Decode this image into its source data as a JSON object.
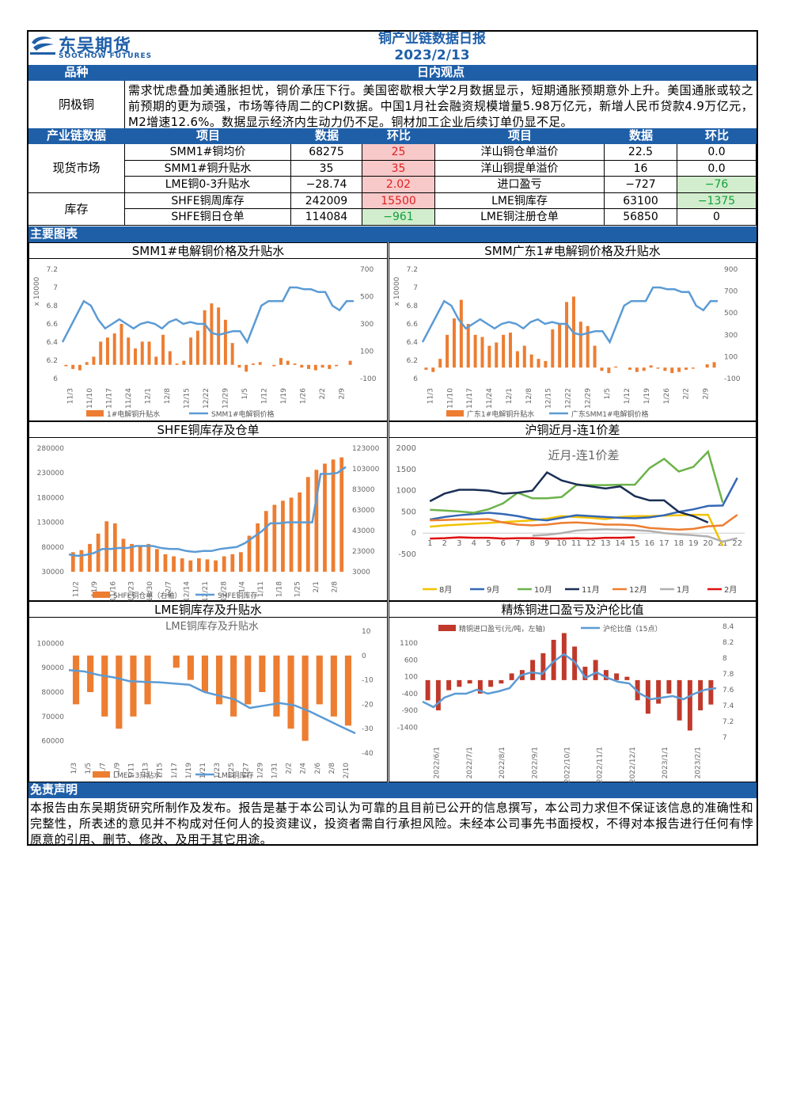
{
  "header": {
    "logo_cn": "东吴期货",
    "logo_en": "SOOCHOW FUTURES",
    "title": "铜产业链数据日报",
    "date": "2023/2/13"
  },
  "view": {
    "col1": "品种",
    "col2": "日内观点",
    "variety": "阴极铜",
    "text": "需求忧虑叠加美通胀担忧，铜价承压下行。美国密歇根大学2月数据显示，短期通胀预期意外上升。美国通胀或较之前预期的更为顽强，市场等待周二的CPI数据。中国1月社会融资规模增量5.98万亿元，新增人民币贷款4.9万亿元，M2增速12.6%。数据显示经济内生动力仍不足。铜材加工企业后续订单仍显不足。"
  },
  "table": {
    "header": {
      "section": "产业链数据",
      "item": "项目",
      "value": "数据",
      "chg": "环比",
      "item2": "项目",
      "value2": "数据",
      "chg2": "环比"
    },
    "groups": [
      {
        "name": "现货市场",
        "rows": [
          {
            "item": "SMM1#铜均价",
            "value": "68275",
            "chg": "25",
            "chg_color": "red",
            "item2": "洋山铜仓单溢价",
            "value2": "22.5",
            "chg2": "0.0",
            "chg2_color": "none"
          },
          {
            "item": "SMM1#铜升贴水",
            "value": "35",
            "chg": "35",
            "chg_color": "red",
            "item2": "洋山铜提单溢价",
            "value2": "16",
            "chg2": "0.0",
            "chg2_color": "none"
          },
          {
            "item": "LME铜0-3升贴水",
            "value": "−28.74",
            "chg": "2.02",
            "chg_color": "red",
            "item2": "进口盈亏",
            "value2": "−727",
            "chg2": "−76",
            "chg2_color": "green"
          }
        ]
      },
      {
        "name": "库存",
        "rows": [
          {
            "item": "SHFE铜周库存",
            "value": "242009",
            "chg": "15500",
            "chg_color": "red",
            "item2": "LME铜库存",
            "value2": "63100",
            "chg2": "−1375",
            "chg2_color": "green"
          },
          {
            "item": "SHFE铜日仓单",
            "value": "114084",
            "chg": "−961",
            "chg_color": "green",
            "item2": "LME铜注册仓单",
            "value2": "56850",
            "chg2": "0",
            "chg2_color": "none"
          }
        ]
      }
    ]
  },
  "charts_section": "主要图表",
  "chart_data": [
    {
      "id": "smm1",
      "type": "bar+line",
      "title": "SMM1#电解铜价格及升贴水",
      "x_ticks": [
        "11/3",
        "11/10",
        "11/17",
        "11/24",
        "12/1",
        "12/8",
        "12/15",
        "12/22",
        "12/29",
        "1/5",
        "1/12",
        "1/19",
        "1/26",
        "2/2",
        "2/9"
      ],
      "ylabel": "x 10000",
      "y_left": [
        6.0,
        6.2,
        6.4,
        6.6,
        6.8,
        7.0,
        7.2
      ],
      "y_right": [
        -100,
        100,
        300,
        500,
        700
      ],
      "ylim_left": [
        6.0,
        7.2
      ],
      "ylim_right": [
        -100,
        700
      ],
      "legend": [
        "1#电解铜升贴水",
        "SMM1#电解铜价格"
      ],
      "series": [
        {
          "name": "SMM1#电解铜价格",
          "type": "line",
          "axis": "left",
          "values": [
            6.4,
            6.55,
            6.7,
            6.85,
            6.8,
            6.65,
            6.55,
            6.6,
            6.65,
            6.6,
            6.55,
            6.6,
            6.62,
            6.6,
            6.55,
            6.62,
            6.65,
            6.6,
            6.62,
            6.6,
            6.6,
            6.5,
            6.48,
            6.5,
            6.52,
            6.52,
            6.4,
            6.6,
            6.8,
            6.85,
            6.85,
            6.85,
            7.0,
            7.0,
            6.98,
            6.98,
            6.95,
            6.95,
            6.8,
            6.75,
            6.85,
            6.85
          ]
        },
        {
          "name": "1#电解铜升贴水",
          "type": "bar",
          "axis": "right",
          "values": [
            -10,
            -30,
            -40,
            20,
            60,
            170,
            200,
            230,
            300,
            200,
            120,
            170,
            170,
            60,
            220,
            100,
            10,
            30,
            200,
            250,
            400,
            450,
            420,
            330,
            160,
            -20,
            -50,
            10,
            20,
            0,
            -10,
            50,
            30,
            10,
            -20,
            -30,
            -40,
            -20,
            -30,
            -10,
            0,
            30
          ]
        }
      ]
    },
    {
      "id": "smmgd",
      "type": "bar+line",
      "title": "SMM广东1#电解铜价格及升贴水",
      "x_ticks": [
        "11/3",
        "11/10",
        "11/17",
        "11/24",
        "12/1",
        "12/8",
        "12/15",
        "12/22",
        "12/29",
        "1/5",
        "1/12",
        "1/19",
        "1/26",
        "2/2",
        "2/9"
      ],
      "ylabel": "x 10000",
      "y_left": [
        6.0,
        6.2,
        6.4,
        6.6,
        6.8,
        7.0,
        7.2
      ],
      "y_right": [
        -100,
        100,
        300,
        500,
        700,
        900
      ],
      "ylim_left": [
        6.0,
        7.2
      ],
      "ylim_right": [
        -100,
        900
      ],
      "legend": [
        "广东1#电解铜升贴水",
        "广东SMM1#电解铜价格"
      ],
      "series": [
        {
          "name": "广东SMM1#电解铜价格",
          "type": "line",
          "axis": "left",
          "values": [
            6.4,
            6.55,
            6.7,
            6.85,
            6.8,
            6.65,
            6.55,
            6.6,
            6.65,
            6.6,
            6.55,
            6.6,
            6.62,
            6.6,
            6.55,
            6.62,
            6.65,
            6.6,
            6.62,
            6.6,
            6.6,
            6.5,
            6.48,
            6.5,
            6.52,
            6.52,
            6.4,
            6.6,
            6.8,
            6.85,
            6.85,
            6.85,
            7.0,
            7.0,
            6.98,
            6.98,
            6.95,
            6.95,
            6.8,
            6.75,
            6.85,
            6.85
          ]
        },
        {
          "name": "广东1#电解铜升贴水",
          "type": "bar",
          "axis": "right",
          "values": [
            -20,
            -40,
            80,
            300,
            450,
            620,
            400,
            300,
            280,
            200,
            230,
            300,
            320,
            150,
            200,
            120,
            80,
            60,
            350,
            400,
            600,
            650,
            420,
            380,
            200,
            -30,
            -50,
            10,
            0,
            -20,
            -40,
            -30,
            20,
            -10,
            -30,
            -50,
            -40,
            -20,
            -10,
            0,
            30,
            50
          ]
        }
      ]
    },
    {
      "id": "shfe",
      "type": "bar+line",
      "title": "SHFE铜库存及仓单",
      "x_ticks": [
        "11/2",
        "11/9",
        "11/16",
        "11/23",
        "11/30",
        "12/7",
        "12/14",
        "12/21",
        "12/28",
        "1/4",
        "1/11",
        "1/18",
        "1/25",
        "2/1",
        "2/8"
      ],
      "y_left": [
        30000,
        80000,
        130000,
        180000,
        230000,
        280000
      ],
      "y_right": [
        3000,
        23000,
        43000,
        63000,
        83000,
        103000,
        123000
      ],
      "ylim_left": [
        30000,
        280000
      ],
      "ylim_right": [
        3000,
        123000
      ],
      "legend": [
        "SHFE铜仓单（右轴）",
        "SHFE铜库存"
      ],
      "series": [
        {
          "name": "SHFE铜库存",
          "type": "line",
          "axis": "left",
          "values": [
            65000,
            62000,
            64000,
            68000,
            76000,
            76000,
            78000,
            78000,
            82000,
            82000,
            82000,
            78000,
            76000,
            76000,
            72000,
            70000,
            72000,
            72000,
            76000,
            78000,
            80000,
            88000,
            100000,
            112000,
            128000,
            128000,
            130000,
            130000,
            130000,
            130000,
            228000,
            228000,
            230000,
            242009
          ]
        },
        {
          "name": "SHFE铜仓单（右轴）",
          "type": "bar",
          "axis": "right",
          "values": [
            22000,
            24000,
            30000,
            40000,
            52000,
            50000,
            35000,
            30000,
            28000,
            30000,
            25000,
            20000,
            18000,
            16000,
            14000,
            16000,
            15000,
            14000,
            18000,
            20000,
            22000,
            38000,
            50000,
            62000,
            68000,
            72000,
            75000,
            80000,
            95000,
            102000,
            108000,
            112000,
            114084
          ]
        }
      ]
    },
    {
      "id": "spread",
      "type": "line",
      "title": "沪铜近月-连1价差",
      "inner_title": "近月-连1价差",
      "categories": [
        "1",
        "2",
        "3",
        "4",
        "5",
        "6",
        "7",
        "8",
        "9",
        "10",
        "11",
        "12",
        "13",
        "14",
        "15",
        "16",
        "17",
        "18",
        "19",
        "20",
        "21",
        "22"
      ],
      "y_ticks": [
        -500,
        0,
        500,
        1000,
        1500,
        2000
      ],
      "ylim": [
        -500,
        2000
      ],
      "series": [
        {
          "name": "8月",
          "color": "#f2c200",
          "values": [
            150,
            180,
            200,
            220,
            240,
            260,
            280,
            300,
            340,
            400,
            380,
            360,
            330,
            380,
            400,
            400,
            410,
            420,
            430,
            430,
            -300,
            null
          ]
        },
        {
          "name": "9月",
          "color": "#3568b5",
          "values": [
            320,
            380,
            420,
            450,
            480,
            450,
            400,
            330,
            300,
            360,
            420,
            400,
            380,
            360,
            350,
            370,
            420,
            500,
            560,
            640,
            650,
            1300
          ]
        },
        {
          "name": "10月",
          "color": "#6cb34a",
          "values": [
            550,
            530,
            510,
            480,
            560,
            700,
            950,
            820,
            820,
            850,
            1130,
            1130,
            1130,
            1140,
            1140,
            1530,
            1750,
            1450,
            1560,
            1920,
            720,
            null
          ]
        },
        {
          "name": "11月",
          "color": "#1a2e55",
          "values": [
            750,
            930,
            1020,
            1020,
            1000,
            930,
            950,
            1000,
            1430,
            1240,
            1150,
            1100,
            1050,
            1100,
            870,
            770,
            770,
            500,
            400,
            250,
            null,
            null
          ]
        },
        {
          "name": "12月",
          "color": "#ed7d31",
          "values": [
            300,
            310,
            320,
            320,
            330,
            250,
            200,
            180,
            200,
            240,
            250,
            230,
            200,
            200,
            180,
            120,
            100,
            80,
            100,
            160,
            180,
            430
          ]
        },
        {
          "name": "1月",
          "color": "#b0b0b0",
          "values": [
            null,
            null,
            null,
            null,
            null,
            null,
            null,
            -60,
            -40,
            0,
            60,
            80,
            90,
            80,
            70,
            50,
            0,
            -30,
            -50,
            -80,
            -200,
            -120
          ]
        },
        {
          "name": "2月",
          "color": "#e01010",
          "values": [
            -130,
            -120,
            -100,
            -110,
            -110,
            -130,
            -120,
            -120,
            -130,
            -130,
            -120,
            -130,
            -110,
            -110,
            -100,
            null,
            null,
            null,
            null,
            null,
            null,
            null
          ]
        }
      ]
    },
    {
      "id": "lme",
      "type": "bar+line",
      "title": "LME铜库存及升贴水",
      "inner_title": "LME铜库存及升贴水",
      "x_ticks": [
        "1/3",
        "1/5",
        "1/7",
        "1/9",
        "1/11",
        "1/13",
        "1/15",
        "1/17",
        "1/19",
        "1/21",
        "1/23",
        "1/25",
        "1/27",
        "1/29",
        "1/31",
        "2/2",
        "2/4",
        "2/6",
        "2/8",
        "2/10"
      ],
      "y_left": [
        60000,
        70000,
        80000,
        90000,
        100000
      ],
      "y_right": [
        -40,
        -30,
        -20,
        -10,
        0,
        10
      ],
      "ylim_left": [
        55000,
        105000
      ],
      "ylim_right": [
        -40,
        10
      ],
      "legend": [
        "LME0-3升贴水",
        "LME铜库存"
      ],
      "series": [
        {
          "name": "LME铜库存",
          "type": "line",
          "axis": "left",
          "values": [
            89000,
            88500,
            87000,
            86000,
            84500,
            84200,
            84000,
            83500,
            83000,
            80000,
            78500,
            77000,
            73500,
            74500,
            75500,
            74500,
            72000,
            69000,
            66000,
            63100
          ]
        },
        {
          "name": "LME0-3升贴水",
          "type": "bar",
          "axis": "right",
          "values": [
            -20,
            -15,
            -25,
            -30,
            -25,
            -20,
            0,
            -5,
            -10,
            -15,
            -20,
            -25,
            -20,
            -15,
            -25,
            -30,
            -35,
            -20,
            -25,
            -28.74
          ]
        }
      ]
    },
    {
      "id": "import",
      "type": "bar+line",
      "title": "精炼铜进口盈亏及沪伦比值",
      "x_ticks": [
        "2022/6/1",
        "2022/7/1",
        "2022/8/1",
        "2022/9/1",
        "2022/10/1",
        "2022/11/1",
        "2022/12/1",
        "2023/1/1",
        "2023/2/1"
      ],
      "y_left": [
        -1400,
        -900,
        -400,
        100,
        600,
        1100
      ],
      "y_right": [
        7.0,
        7.2,
        7.4,
        7.6,
        7.8,
        8.0,
        8.2,
        8.4
      ],
      "ylim_left": [
        -1700,
        1600
      ],
      "ylim_right": [
        7.0,
        8.4
      ],
      "legend": [
        "精铜进口盈亏(元/吨，左轴)",
        "沪伦比值（15点）"
      ],
      "series": [
        {
          "name": "沪伦比值（15点）",
          "type": "line",
          "axis": "right",
          "values": [
            7.45,
            7.38,
            7.5,
            7.55,
            7.55,
            7.6,
            7.55,
            7.58,
            7.62,
            7.78,
            7.82,
            7.8,
            7.95,
            8.05,
            7.95,
            7.75,
            7.82,
            7.75,
            7.7,
            7.68,
            7.55,
            7.48,
            7.5,
            7.52,
            7.48,
            7.55,
            7.6,
            7.62
          ]
        },
        {
          "name": "精铜进口盈亏(元/吨，左轴)",
          "type": "bar",
          "axis": "left",
          "values": [
            -600,
            -900,
            -300,
            -200,
            -100,
            -400,
            -200,
            -100,
            200,
            300,
            600,
            800,
            1200,
            1400,
            1000,
            400,
            600,
            300,
            200,
            100,
            -600,
            -1000,
            -700,
            -400,
            -1200,
            -1500,
            -900,
            -727
          ]
        }
      ]
    }
  ],
  "disclaimer": {
    "title": "免责声明",
    "text": "本报告由东吴期货研究所制作及发布。报告是基于本公司认为可靠的且目前已公开的信息撰写，本公司力求但不保证该信息的准确性和完整性，所表述的意见并不构成对任何人的投资建议，投资者需自行承担风险。未经本公司事先书面授权，不得对本报告进行任何有悖原意的引用、删节、修改、及用于其它用途。"
  }
}
